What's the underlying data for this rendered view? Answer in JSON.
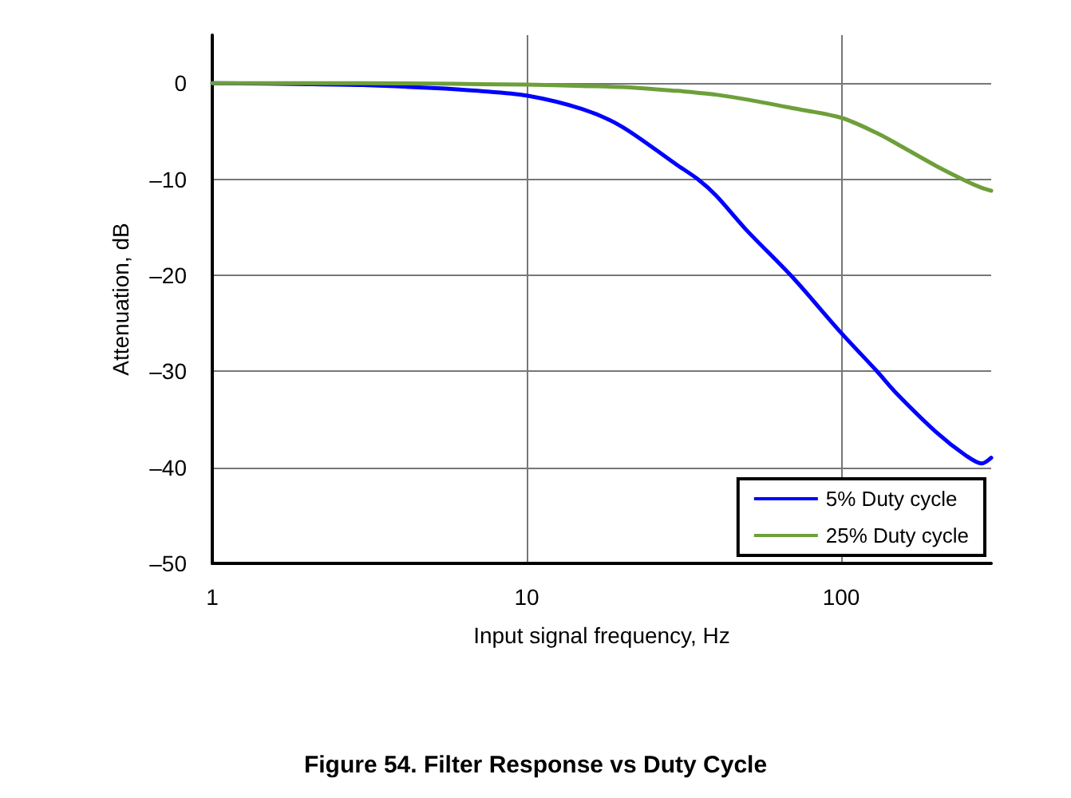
{
  "chart_data": {
    "type": "line",
    "title": "Figure 54. Filter Response vs Duty Cycle",
    "xlabel": "Input signal frequency, Hz",
    "ylabel": "Attenuation, dB",
    "x": [
      1,
      2,
      3,
      5,
      7,
      10,
      15,
      20,
      30,
      35,
      40,
      50,
      70,
      100,
      130,
      150,
      200,
      250,
      280,
      300
    ],
    "series": [
      {
        "name": "5% Duty cycle",
        "color": "#0000ff",
        "values": [
          0,
          -0.1,
          -0.2,
          -0.5,
          -0.8,
          -1.3,
          -2.7,
          -4.5,
          -8.5,
          -10,
          -11.7,
          -15.3,
          -20.2,
          -26,
          -30,
          -32.3,
          -36.3,
          -38.8,
          -39.6,
          -39
        ]
      },
      {
        "name": "25% Duty cycle",
        "color": "#6e9f3a",
        "values": [
          0,
          0,
          0,
          -0.05,
          -0.1,
          -0.15,
          -0.3,
          -0.4,
          -0.8,
          -1,
          -1.2,
          -1.7,
          -2.6,
          -3.6,
          -5.2,
          -6.3,
          -8.6,
          -10.2,
          -10.9,
          -11.2
        ]
      }
    ],
    "xlim": [
      1,
      300
    ],
    "xticks": [
      1,
      10,
      100
    ],
    "ylim": [
      -50,
      5
    ],
    "yticks": [
      {
        "value": -50,
        "label": "–50"
      },
      {
        "value": -40,
        "label": "–40"
      },
      {
        "value": -30,
        "label": "–30"
      },
      {
        "value": -20,
        "label": "–20"
      },
      {
        "value": -10,
        "label": "–10"
      },
      0
    ],
    "log": "x",
    "grid": true,
    "legend": "bottom right",
    "marker": "none",
    "line_style": "solid"
  }
}
